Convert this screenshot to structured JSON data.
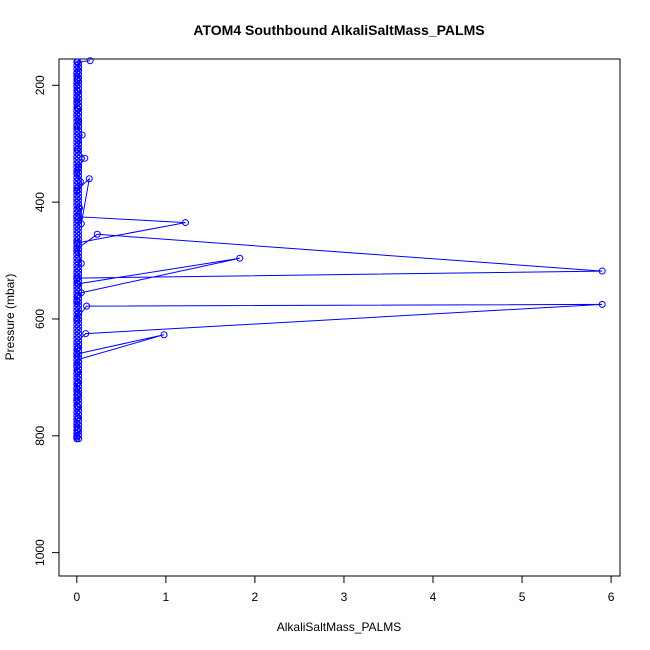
{
  "chart_data": {
    "type": "line",
    "title": "ATOM4 Southbound AlkaliSaltMass_PALMS",
    "xlabel": "AlkaliSaltMass_PALMS",
    "ylabel": "Pressure (mbar)",
    "xlim": [
      -0.2,
      6.1
    ],
    "ylim": [
      1040,
      155
    ],
    "y_reversed": true,
    "x_ticks": [
      0,
      1,
      2,
      3,
      4,
      5,
      6
    ],
    "y_ticks": [
      200,
      400,
      600,
      800,
      1000
    ],
    "grid": false,
    "legend": "none",
    "colors": {
      "series": "#0000ff",
      "axis": "#000000",
      "background": "#ffffff"
    },
    "series": [
      {
        "marker": "open-circle",
        "points": [
          [
            0.0,
            805
          ],
          [
            0.0,
            800
          ],
          [
            0.01,
            790
          ],
          [
            0.0,
            780
          ],
          [
            0.01,
            770
          ],
          [
            0.0,
            760
          ],
          [
            0.01,
            750
          ],
          [
            0.0,
            740
          ],
          [
            0.01,
            730
          ],
          [
            0.0,
            720
          ],
          [
            0.01,
            710
          ],
          [
            0.0,
            700
          ],
          [
            0.01,
            690
          ],
          [
            0.0,
            680
          ],
          [
            0.0,
            670
          ],
          [
            0.98,
            627
          ],
          [
            0.0,
            660
          ],
          [
            0.01,
            650
          ],
          [
            0.0,
            640
          ],
          [
            0.1,
            625
          ],
          [
            5.9,
            575
          ],
          [
            0.11,
            578
          ],
          [
            0.0,
            600
          ],
          [
            0.02,
            590
          ],
          [
            0.0,
            570
          ],
          [
            0.01,
            560
          ],
          [
            0.05,
            555
          ],
          [
            1.83,
            496
          ],
          [
            0.01,
            540
          ],
          [
            0.0,
            530
          ],
          [
            5.9,
            518
          ],
          [
            0.23,
            455
          ],
          [
            0.0,
            480
          ],
          [
            0.05,
            505
          ],
          [
            0.0,
            470
          ],
          [
            1.22,
            435
          ],
          [
            0.0,
            425
          ],
          [
            0.03,
            410
          ],
          [
            0.05,
            437
          ],
          [
            0.14,
            360
          ],
          [
            0.0,
            380
          ],
          [
            0.04,
            365
          ],
          [
            0.0,
            350
          ],
          [
            0.02,
            340
          ],
          [
            0.09,
            325
          ],
          [
            0.01,
            310
          ],
          [
            0.02,
            300
          ],
          [
            0.06,
            285
          ],
          [
            0.0,
            270
          ],
          [
            0.02,
            262
          ],
          [
            0.0,
            250
          ],
          [
            0.01,
            240
          ],
          [
            0.0,
            230
          ],
          [
            0.0,
            220
          ],
          [
            0.01,
            210
          ],
          [
            0.0,
            200
          ],
          [
            0.01,
            190
          ],
          [
            0.0,
            180
          ],
          [
            0.02,
            170
          ],
          [
            0.01,
            160
          ],
          [
            0.15,
            158
          ]
        ],
        "dense_column": {
          "x": [
            0.0,
            0.02
          ],
          "y_range": [
            160,
            805
          ],
          "step": 3
        }
      }
    ]
  }
}
